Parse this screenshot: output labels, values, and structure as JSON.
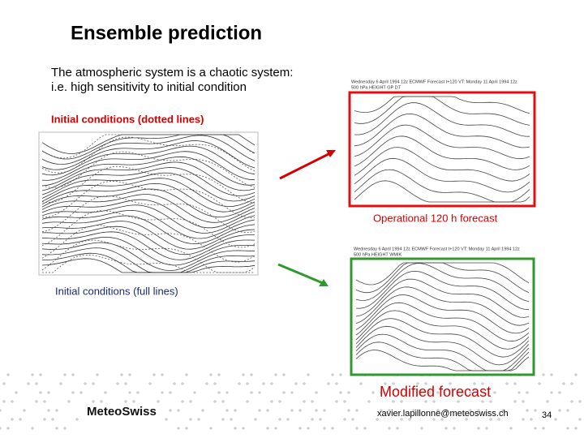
{
  "header": {
    "title": "Ensemble prediction"
  },
  "body": {
    "lines": [
      "The atmospheric system is a chaotic system:",
      "i.e. high sensitivity to initial condition"
    ]
  },
  "left_panel": {
    "label_top": "Initial conditions (dotted lines)",
    "label_bottom": "Initial conditions (full lines)"
  },
  "right_panels": [
    {
      "header_lines": [
        "Wednesday 6 April 1994 12z ECMWF Forecast t+120 VT: Monday 11 April 1994 12z",
        "500 hPa HEIGHT GP DT"
      ],
      "caption": "Operational 120 h forecast"
    },
    {
      "header_lines": [
        "Wednesday 6 April 1994 12z ECMWF Forecast t+120 VT: Monday 11 April 1994 12z",
        "500 hPa HEIGHT WMIK"
      ],
      "caption": "Modified forecast"
    }
  ],
  "footer": {
    "logo": "MeteoSwiss",
    "email": "xavier.lapillonne@meteoswiss.ch",
    "page": 34
  }
}
